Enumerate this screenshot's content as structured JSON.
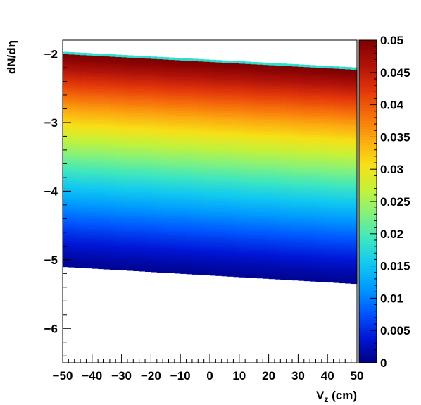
{
  "chart_data": {
    "type": "heatmap",
    "title": "",
    "xlabel_main": "V",
    "xlabel_sub": "z",
    "xlabel_unit": " (cm)",
    "ylabel": "dN/dη",
    "xlim": [
      -50,
      50
    ],
    "ylim": [
      -6.5,
      -1.8
    ],
    "zlim": [
      0,
      0.05
    ],
    "x_ticks": [
      "−50",
      "−40",
      "−30",
      "−20",
      "−10",
      "0",
      "10",
      "20",
      "30",
      "40",
      "50"
    ],
    "x_tick_values": [
      -50,
      -40,
      -30,
      -20,
      -10,
      0,
      10,
      20,
      30,
      40,
      50
    ],
    "y_ticks": [
      "−2",
      "−3",
      "−4",
      "−5",
      "−6"
    ],
    "y_tick_values": [
      -2,
      -3,
      -4,
      -5,
      -6
    ],
    "colorbar_ticks": [
      "0",
      "0.005",
      "0.01",
      "0.015",
      "0.02",
      "0.025",
      "0.03",
      "0.035",
      "0.04",
      "0.045",
      "0.05"
    ],
    "colorbar_values": [
      0,
      0.005,
      0.01,
      0.015,
      0.02,
      0.025,
      0.03,
      0.035,
      0.04,
      0.045,
      0.05
    ],
    "palette": [
      "#00007f",
      "#0015d6",
      "#0055ff",
      "#0099ff",
      "#11c8f0",
      "#3ee6c0",
      "#82f27e",
      "#c4f23a",
      "#f7e017",
      "#fcaa10",
      "#f66d0b",
      "#e2360a",
      "#b0120a",
      "#7f0000"
    ],
    "density_profile": {
      "upper_edge_at_vz_minus50": -1.97,
      "upper_edge_at_vz_plus50": -2.2,
      "lower_edge_at_vz_minus50": -5.1,
      "lower_edge_at_vz_plus50": -5.35,
      "value_at_upper_edge": 0.05,
      "value_at_lower_edge": 0.001
    }
  }
}
